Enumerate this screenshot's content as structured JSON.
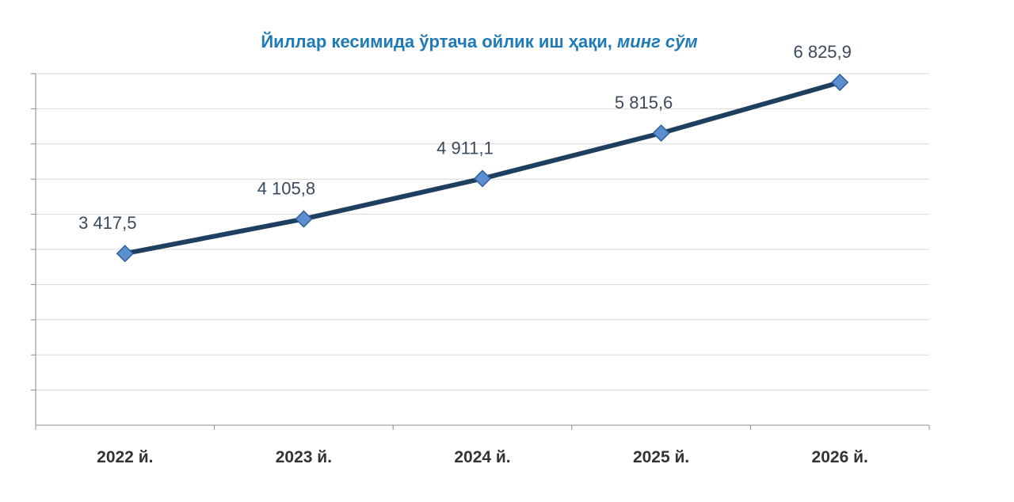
{
  "chart_data": {
    "type": "line",
    "title": "Йиллар кесимида ўртача ойлик иш ҳақи",
    "title_unit": "минг сўм",
    "xlabel": "",
    "ylabel": "",
    "categories": [
      "2022 й.",
      "2023 й.",
      "2024 й.",
      "2025 й.",
      "2026 й."
    ],
    "series": [
      {
        "values": [
          3417.5,
          4105.8,
          4911.1,
          5815.6,
          6825.9
        ],
        "labels": [
          "3 417,5",
          "4 105,8",
          "4 911,1",
          "5 815,6",
          "6 825,9"
        ]
      }
    ],
    "ylim": [
      0,
      7000
    ],
    "grid": true,
    "legend": "none",
    "colors": {
      "line": "#1f3f60",
      "marker_fill": "#5b8fd0",
      "marker_stroke": "#2f5f9a",
      "grid": "#d9d9d9",
      "title": "#1f7ab8",
      "label": "#3b4a5a"
    }
  }
}
